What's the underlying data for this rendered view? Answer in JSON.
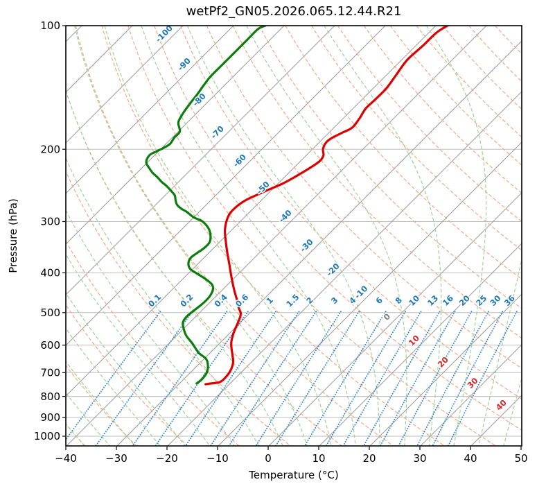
{
  "chart": {
    "title": "wetPf2_GN05.2026.065.12.44.R21",
    "xlabel": "Temperature (°C)",
    "ylabel": "Pressure (hPa)"
  },
  "style": {
    "frame_color": "#000000",
    "pressure_grid_color": "#bdbdbd",
    "isotherm_color": "#9e9e9e",
    "dry_adiabat_color": "#f7a784",
    "moist_adiabat_color": "#9ed29a",
    "mixing_ratio_color": "#3585d5",
    "temperature_color": "#dd0000",
    "dewpoint_color": "#0a7d0a",
    "label_blue": "#1f77b4",
    "label_red": "#d62728",
    "label_gray": "#808080"
  },
  "chart_data": {
    "type": "line",
    "subtype": "skew-t-log-p",
    "title": "wetPf2_GN05.2026.065.12.44.R21",
    "x_axis": {
      "label": "Temperature (°C)",
      "unit": "°C",
      "range": [
        -40,
        50
      ],
      "ticks": [
        -40,
        -30,
        -20,
        -10,
        0,
        10,
        20,
        30,
        40,
        50
      ],
      "tick_labels": [
        "−40",
        "−30",
        "−20",
        "−10",
        "0",
        "10",
        "20",
        "30",
        "40",
        "50"
      ]
    },
    "y_axis": {
      "label": "Pressure (hPa)",
      "unit": "hPa",
      "scale": "log",
      "range": [
        100,
        1056
      ],
      "ticks": [
        100,
        200,
        300,
        400,
        500,
        600,
        700,
        800,
        900,
        1000
      ],
      "tick_labels": [
        "100",
        "200",
        "300",
        "400",
        "500",
        "600",
        "700",
        "800",
        "900",
        "1000"
      ]
    },
    "skew_deg": 45,
    "isotherms": {
      "min_c": -130,
      "max_c": 50,
      "step_c": 10
    },
    "dry_adiabats": {
      "theta_min_c": -40,
      "theta_max_c": 190,
      "step_c": 10
    },
    "moist_adiabats": {
      "thetaw_min_c": -60,
      "thetaw_max_c": 45,
      "step_c": 5
    },
    "mixing_ratio_lines": {
      "values_g_kg": [
        0.1,
        0.2,
        0.4,
        0.6,
        1,
        1.5,
        2,
        3,
        4,
        6,
        8,
        10,
        13,
        16,
        20,
        25,
        30,
        36
      ],
      "labels": [
        "0.1",
        "0.2",
        "0.4",
        "0.6",
        "1",
        "1.5",
        "2",
        "3",
        "4",
        "6",
        "8",
        "10",
        "13",
        "16",
        "20",
        "25",
        "30",
        "36"
      ],
      "top_pressure_hPa": 497,
      "label_pressure_hPa": 478
    },
    "isotherm_labels": [
      {
        "text": "-100",
        "t_c": -100,
        "p_hPa": 107,
        "color_key": "label_blue"
      },
      {
        "text": "-90",
        "t_c": -90,
        "p_hPa": 127,
        "color_key": "label_blue"
      },
      {
        "text": "-80",
        "t_c": -80,
        "p_hPa": 155,
        "color_key": "label_blue"
      },
      {
        "text": "-70",
        "t_c": -70,
        "p_hPa": 186,
        "color_key": "label_blue"
      },
      {
        "text": "-60",
        "t_c": -60,
        "p_hPa": 218,
        "color_key": "label_blue"
      },
      {
        "text": "-50",
        "t_c": -50,
        "p_hPa": 254,
        "color_key": "label_blue"
      },
      {
        "text": "-40",
        "t_c": -40,
        "p_hPa": 298,
        "color_key": "label_blue"
      },
      {
        "text": "-30",
        "t_c": -30,
        "p_hPa": 351,
        "color_key": "label_blue"
      },
      {
        "text": "-20",
        "t_c": -20,
        "p_hPa": 402,
        "color_key": "label_blue"
      },
      {
        "text": "-10",
        "t_c": -10,
        "p_hPa": 456,
        "color_key": "label_blue"
      },
      {
        "text": "0",
        "t_c": 0,
        "p_hPa": 524,
        "color_key": "label_gray"
      },
      {
        "text": "10",
        "t_c": 10,
        "p_hPa": 598,
        "color_key": "label_red"
      },
      {
        "text": "20",
        "t_c": 20,
        "p_hPa": 675,
        "color_key": "label_red"
      },
      {
        "text": "30",
        "t_c": 30,
        "p_hPa": 759,
        "color_key": "label_red"
      },
      {
        "text": "40",
        "t_c": 40,
        "p_hPa": 859,
        "color_key": "label_red"
      }
    ],
    "series": [
      {
        "name": "temperature",
        "color_key": "temperature_color",
        "points_p_T": [
          [
            100,
            -47.7
          ],
          [
            104,
            -48.5
          ],
          [
            112,
            -48.6
          ],
          [
            121,
            -48.9
          ],
          [
            132,
            -48.1
          ],
          [
            142,
            -47.4
          ],
          [
            151,
            -47.4
          ],
          [
            159,
            -47.5
          ],
          [
            168,
            -46.8
          ],
          [
            177,
            -46.4
          ],
          [
            182,
            -47.3
          ],
          [
            188,
            -48.4
          ],
          [
            193,
            -48.6
          ],
          [
            200,
            -47.9
          ],
          [
            207,
            -46.6
          ],
          [
            214,
            -46.2
          ],
          [
            221,
            -46.7
          ],
          [
            231,
            -47.7
          ],
          [
            242,
            -49.0
          ],
          [
            250,
            -50.5
          ],
          [
            258,
            -51.9
          ],
          [
            267,
            -53.2
          ],
          [
            278,
            -53.7
          ],
          [
            291,
            -53.4
          ],
          [
            313,
            -51.5
          ],
          [
            338,
            -48.6
          ],
          [
            358,
            -46.3
          ],
          [
            384,
            -43.4
          ],
          [
            410,
            -40.7
          ],
          [
            440,
            -37.7
          ],
          [
            465,
            -35.2
          ],
          [
            487,
            -33.2
          ],
          [
            504,
            -31.6
          ],
          [
            528,
            -30.5
          ],
          [
            560,
            -29.3
          ],
          [
            594,
            -27.7
          ],
          [
            635,
            -25.1
          ],
          [
            660,
            -23.6
          ],
          [
            691,
            -22.5
          ],
          [
            718,
            -22.1
          ],
          [
            738,
            -22.3
          ],
          [
            744,
            -23.8
          ],
          [
            747,
            -24.7
          ]
        ]
      },
      {
        "name": "dewpoint",
        "color_key": "dewpoint_color",
        "points_p_T": [
          [
            100,
            -83.7
          ],
          [
            102,
            -84.5
          ],
          [
            108,
            -84.5
          ],
          [
            114,
            -84.5
          ],
          [
            120,
            -84.5
          ],
          [
            126,
            -84.5
          ],
          [
            133,
            -84.5
          ],
          [
            140,
            -84.1
          ],
          [
            147,
            -83.6
          ],
          [
            155,
            -83.2
          ],
          [
            163,
            -82.7
          ],
          [
            172,
            -81.8
          ],
          [
            181,
            -79.7
          ],
          [
            187,
            -79.6
          ],
          [
            194,
            -79.2
          ],
          [
            198,
            -79.6
          ],
          [
            202,
            -80.3
          ],
          [
            206,
            -81.0
          ],
          [
            212,
            -80.7
          ],
          [
            217,
            -79.9
          ],
          [
            222,
            -78.6
          ],
          [
            228,
            -77.0
          ],
          [
            234,
            -75.1
          ],
          [
            240,
            -73.4
          ],
          [
            246,
            -71.5
          ],
          [
            253,
            -69.6
          ],
          [
            259,
            -68.1
          ],
          [
            266,
            -67.0
          ],
          [
            273,
            -65.8
          ],
          [
            279,
            -64.2
          ],
          [
            284,
            -62.5
          ],
          [
            293,
            -60.0
          ],
          [
            299,
            -57.7
          ],
          [
            307,
            -55.8
          ],
          [
            316,
            -54.2
          ],
          [
            328,
            -52.7
          ],
          [
            338,
            -51.9
          ],
          [
            349,
            -51.9
          ],
          [
            358,
            -52.3
          ],
          [
            368,
            -52.6
          ],
          [
            380,
            -51.9
          ],
          [
            392,
            -50.4
          ],
          [
            404,
            -47.7
          ],
          [
            417,
            -44.9
          ],
          [
            428,
            -43.0
          ],
          [
            440,
            -41.9
          ],
          [
            458,
            -41.2
          ],
          [
            476,
            -41.2
          ],
          [
            492,
            -41.5
          ],
          [
            510,
            -41.8
          ],
          [
            528,
            -41.4
          ],
          [
            547,
            -40.0
          ],
          [
            569,
            -38.1
          ],
          [
            595,
            -35.3
          ],
          [
            627,
            -32.2
          ],
          [
            647,
            -29.7
          ],
          [
            673,
            -27.9
          ],
          [
            702,
            -26.7
          ],
          [
            727,
            -26.4
          ],
          [
            744,
            -26.6
          ]
        ]
      }
    ]
  }
}
